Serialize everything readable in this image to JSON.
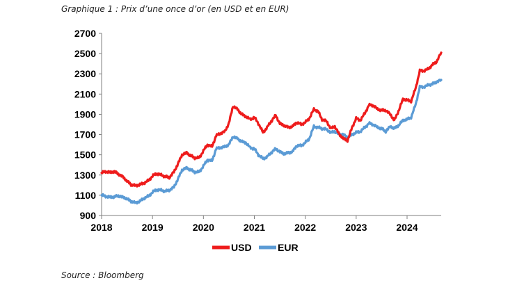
{
  "title": "Graphique 1 : Prix d’une once d’or (en USD et en EUR)",
  "source": "Source : Bloomberg",
  "colors": {
    "USD": "#ee1c1c",
    "EUR": "#5b9bd5"
  },
  "chart_data": {
    "type": "line",
    "title": "Graphique 1 : Prix d’une once d’or (en USD et en EUR)",
    "xlabel": "",
    "ylabel": "",
    "xlim": [
      2018.0,
      2024.67
    ],
    "ylim": [
      900,
      2700
    ],
    "yticks": [
      900,
      1100,
      1300,
      1500,
      1700,
      1900,
      2100,
      2300,
      2500,
      2700
    ],
    "xticks": [
      2018,
      2019,
      2020,
      2021,
      2022,
      2023,
      2024
    ],
    "xtick_labels": [
      "2018",
      "2019",
      "2020",
      "2021",
      "2022",
      "2023",
      "2024"
    ],
    "grid": false,
    "legend": "bottom",
    "series": [
      {
        "name": "USD",
        "x": [
          2018.0,
          2018.08,
          2018.17,
          2018.25,
          2018.33,
          2018.42,
          2018.5,
          2018.58,
          2018.67,
          2018.75,
          2018.83,
          2018.92,
          2019.0,
          2019.08,
          2019.17,
          2019.25,
          2019.33,
          2019.42,
          2019.5,
          2019.58,
          2019.67,
          2019.75,
          2019.83,
          2019.92,
          2020.0,
          2020.08,
          2020.17,
          2020.25,
          2020.33,
          2020.42,
          2020.5,
          2020.58,
          2020.67,
          2020.75,
          2020.83,
          2020.92,
          2021.0,
          2021.08,
          2021.17,
          2021.25,
          2021.33,
          2021.42,
          2021.5,
          2021.58,
          2021.67,
          2021.75,
          2021.83,
          2021.92,
          2022.0,
          2022.08,
          2022.17,
          2022.25,
          2022.33,
          2022.42,
          2022.5,
          2022.58,
          2022.67,
          2022.75,
          2022.83,
          2022.92,
          2023.0,
          2023.08,
          2023.17,
          2023.25,
          2023.33,
          2023.42,
          2023.5,
          2023.58,
          2023.67,
          2023.75,
          2023.83,
          2023.92,
          2024.0,
          2024.08,
          2024.17,
          2024.25,
          2024.33,
          2024.42,
          2024.5,
          2024.58,
          2024.67
        ],
        "values": [
          1320,
          1335,
          1325,
          1335,
          1310,
          1280,
          1240,
          1205,
          1195,
          1205,
          1220,
          1245,
          1290,
          1315,
          1300,
          1285,
          1275,
          1330,
          1410,
          1500,
          1520,
          1490,
          1470,
          1470,
          1540,
          1600,
          1580,
          1690,
          1710,
          1730,
          1810,
          1980,
          1950,
          1900,
          1880,
          1850,
          1870,
          1810,
          1720,
          1770,
          1830,
          1890,
          1810,
          1790,
          1770,
          1780,
          1820,
          1800,
          1820,
          1860,
          1950,
          1930,
          1850,
          1830,
          1760,
          1780,
          1700,
          1660,
          1640,
          1770,
          1860,
          1840,
          1910,
          1990,
          1990,
          1950,
          1940,
          1940,
          1900,
          1840,
          1930,
          2050,
          2040,
          2030,
          2160,
          2330,
          2330,
          2350,
          2390,
          2420,
          2510
        ]
      },
      {
        "name": "EUR",
        "x": [
          2018.0,
          2018.08,
          2018.17,
          2018.25,
          2018.33,
          2018.42,
          2018.5,
          2018.58,
          2018.67,
          2018.75,
          2018.83,
          2018.92,
          2019.0,
          2019.08,
          2019.17,
          2019.25,
          2019.33,
          2019.42,
          2019.5,
          2019.58,
          2019.67,
          2019.75,
          2019.83,
          2019.92,
          2020.0,
          2020.08,
          2020.17,
          2020.25,
          2020.33,
          2020.42,
          2020.5,
          2020.58,
          2020.67,
          2020.75,
          2020.83,
          2020.92,
          2021.0,
          2021.08,
          2021.17,
          2021.25,
          2021.33,
          2021.42,
          2021.5,
          2021.58,
          2021.67,
          2021.75,
          2021.83,
          2021.92,
          2022.0,
          2022.08,
          2022.17,
          2022.25,
          2022.33,
          2022.42,
          2022.5,
          2022.58,
          2022.67,
          2022.75,
          2022.83,
          2022.92,
          2023.0,
          2023.08,
          2023.17,
          2023.25,
          2023.33,
          2023.42,
          2023.5,
          2023.58,
          2023.67,
          2023.75,
          2023.83,
          2023.92,
          2024.0,
          2024.08,
          2024.17,
          2024.25,
          2024.33,
          2024.42,
          2024.5,
          2024.58,
          2024.67
        ],
        "values": [
          1100,
          1090,
          1080,
          1085,
          1095,
          1080,
          1065,
          1040,
          1025,
          1040,
          1070,
          1090,
          1130,
          1155,
          1150,
          1140,
          1150,
          1180,
          1260,
          1350,
          1370,
          1350,
          1330,
          1330,
          1390,
          1450,
          1440,
          1560,
          1570,
          1580,
          1600,
          1680,
          1660,
          1630,
          1620,
          1570,
          1560,
          1500,
          1460,
          1480,
          1520,
          1560,
          1530,
          1510,
          1520,
          1530,
          1590,
          1590,
          1620,
          1660,
          1780,
          1770,
          1760,
          1750,
          1720,
          1730,
          1700,
          1700,
          1670,
          1700,
          1720,
          1730,
          1770,
          1810,
          1800,
          1770,
          1760,
          1730,
          1780,
          1760,
          1790,
          1840,
          1850,
          1870,
          2000,
          2170,
          2170,
          2190,
          2200,
          2220,
          2240
        ]
      }
    ]
  }
}
